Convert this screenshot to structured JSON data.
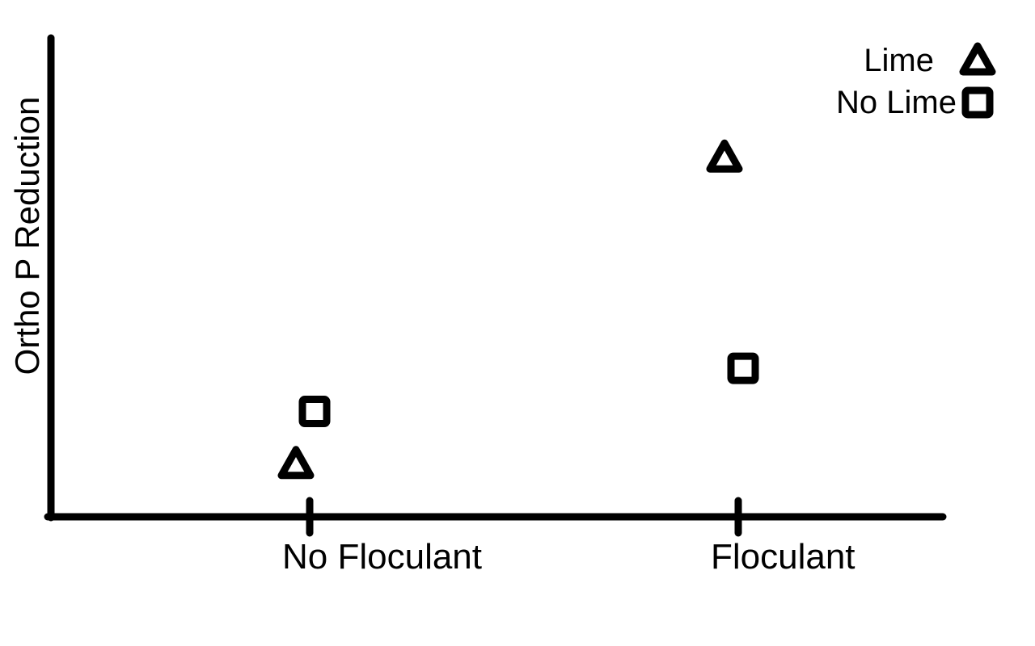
{
  "chart_data": {
    "type": "scatter",
    "title": "",
    "xlabel": "",
    "ylabel": "Ortho P Reduction",
    "categories": [
      "No Floculant",
      "Floculant"
    ],
    "series": [
      {
        "name": "Lime",
        "marker": "triangle",
        "values": [
          0.11,
          0.75
        ]
      },
      {
        "name": "No Lime",
        "marker": "square",
        "values": [
          0.22,
          0.31
        ]
      }
    ],
    "ylim": [
      0,
      1
    ],
    "y_ticks_shown": false,
    "grid": false,
    "legend_position": "top-right",
    "colors": {
      "ink": "#000000",
      "background": "#ffffff"
    }
  }
}
